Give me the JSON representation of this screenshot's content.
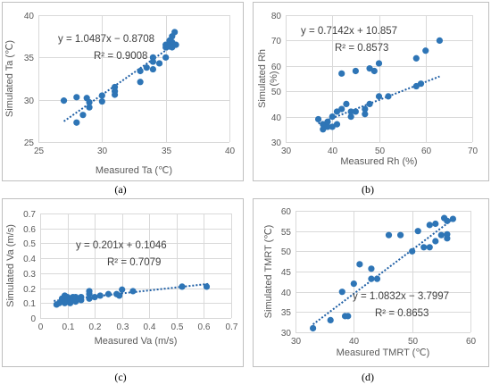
{
  "figure": {
    "marker_color": "#2e75b6",
    "trend_color": "#1f5fa5"
  },
  "chart_data": [
    {
      "type": "scatter",
      "panel_label": "(a)",
      "xlabel": "Measured Ta (℃)",
      "ylabel": "Simulated Ta (℃)",
      "xlim": [
        25,
        40
      ],
      "ylim": [
        25,
        40
      ],
      "xticks": [
        25,
        30,
        35,
        40
      ],
      "yticks": [
        25,
        30,
        35,
        40
      ],
      "equation": "y = 1.0487x − 0.8708",
      "r_squared": "R² = 0.9008",
      "trendline": {
        "slope": 1.0487,
        "intercept": -0.8708,
        "x_range": [
          27,
          35.7
        ],
        "style": "dotted linear"
      },
      "points": [
        [
          27.0,
          29.9
        ],
        [
          28.0,
          30.3
        ],
        [
          28.0,
          27.3
        ],
        [
          28.5,
          28.2
        ],
        [
          28.8,
          30.2
        ],
        [
          29.0,
          29.7
        ],
        [
          29.0,
          29.1
        ],
        [
          30.0,
          30.5
        ],
        [
          30.0,
          29.8
        ],
        [
          31.0,
          31.5
        ],
        [
          31.0,
          31.0
        ],
        [
          31.0,
          30.6
        ],
        [
          33.0,
          32.1
        ],
        [
          33.0,
          33.4
        ],
        [
          33.5,
          33.8
        ],
        [
          34.0,
          33.6
        ],
        [
          34.0,
          34.5
        ],
        [
          34.0,
          35.0
        ],
        [
          34.5,
          34.3
        ],
        [
          35.0,
          35.0
        ],
        [
          35.0,
          36.2
        ],
        [
          35.0,
          36.5
        ],
        [
          35.3,
          37.0
        ],
        [
          35.5,
          36.8
        ],
        [
          35.5,
          37.5
        ],
        [
          35.5,
          36.2
        ],
        [
          35.7,
          38.0
        ],
        [
          35.8,
          36.5
        ],
        [
          35.3,
          36.3
        ]
      ]
    },
    {
      "type": "scatter",
      "panel_label": "(b)",
      "xlabel": "Measured Rh (%)",
      "ylabel": "Simulated Rh\n(%)",
      "ylabel_lines": [
        "Simulated Rh",
        "(%)"
      ],
      "xlim": [
        30,
        70
      ],
      "ylim": [
        30,
        80
      ],
      "xticks": [
        30,
        40,
        50,
        60,
        70
      ],
      "yticks": [
        30,
        40,
        50,
        60,
        70,
        80
      ],
      "equation": "y = 0.7142x + 10.857",
      "r_squared": "R² = 0.8573",
      "trendline": {
        "slope": 0.7142,
        "intercept": 10.857,
        "x_range": [
          37,
          63
        ],
        "style": "dotted linear"
      },
      "points": [
        [
          37,
          39
        ],
        [
          38,
          37
        ],
        [
          38,
          35
        ],
        [
          39,
          36
        ],
        [
          39,
          38
        ],
        [
          40,
          40
        ],
        [
          40,
          36
        ],
        [
          41,
          42
        ],
        [
          41,
          37
        ],
        [
          42,
          43
        ],
        [
          42,
          57
        ],
        [
          43,
          45
        ],
        [
          44,
          40
        ],
        [
          44,
          42
        ],
        [
          45,
          42
        ],
        [
          45,
          58
        ],
        [
          47,
          41
        ],
        [
          47,
          43
        ],
        [
          48,
          45
        ],
        [
          48,
          59
        ],
        [
          49,
          58
        ],
        [
          50,
          61
        ],
        [
          50,
          48
        ],
        [
          52,
          48
        ],
        [
          58,
          52
        ],
        [
          58,
          63
        ],
        [
          59,
          53
        ],
        [
          60,
          66
        ],
        [
          63,
          70
        ]
      ]
    },
    {
      "type": "scatter",
      "panel_label": "(c)",
      "xlabel": "Measured Va (m/s)",
      "ylabel": "Simulated Va (m/s)",
      "xlim": [
        0,
        0.7
      ],
      "ylim": [
        0,
        0.7
      ],
      "xticks": [
        0,
        0.1,
        0.2,
        0.3,
        0.4,
        0.5,
        0.6,
        0.7
      ],
      "yticks": [
        0,
        0.1,
        0.2,
        0.3,
        0.4,
        0.5,
        0.6,
        0.7
      ],
      "equation": "y = 0.201x + 0.1046",
      "r_squared": "R² = 0.7079",
      "trendline": {
        "slope": 0.201,
        "intercept": 0.1046,
        "x_range": [
          0.05,
          0.62
        ],
        "style": "dotted linear"
      },
      "points": [
        [
          0.06,
          0.09
        ],
        [
          0.07,
          0.1
        ],
        [
          0.08,
          0.12
        ],
        [
          0.08,
          0.13
        ],
        [
          0.09,
          0.15
        ],
        [
          0.09,
          0.1
        ],
        [
          0.1,
          0.14
        ],
        [
          0.1,
          0.11
        ],
        [
          0.1,
          0.12
        ],
        [
          0.11,
          0.13
        ],
        [
          0.11,
          0.1
        ],
        [
          0.12,
          0.14
        ],
        [
          0.12,
          0.12
        ],
        [
          0.13,
          0.14
        ],
        [
          0.13,
          0.11
        ],
        [
          0.14,
          0.13
        ],
        [
          0.15,
          0.14
        ],
        [
          0.15,
          0.12
        ],
        [
          0.18,
          0.13
        ],
        [
          0.18,
          0.16
        ],
        [
          0.18,
          0.18
        ],
        [
          0.2,
          0.14
        ],
        [
          0.22,
          0.15
        ],
        [
          0.25,
          0.16
        ],
        [
          0.28,
          0.16
        ],
        [
          0.29,
          0.15
        ],
        [
          0.3,
          0.19
        ],
        [
          0.34,
          0.18
        ],
        [
          0.52,
          0.21
        ],
        [
          0.61,
          0.21
        ]
      ]
    },
    {
      "type": "scatter",
      "panel_label": "(d)",
      "xlabel": "Measured TMRT (℃)",
      "ylabel": "Simulated TMRT (℃)",
      "xlim": [
        30,
        60
      ],
      "ylim": [
        30,
        60
      ],
      "xticks": [
        30,
        40,
        50,
        60
      ],
      "yticks": [
        30,
        35,
        40,
        45,
        50,
        55,
        60
      ],
      "equation": "y = 1.0832x − 3.7997",
      "r_squared": "R² = 0.8653",
      "trendline": {
        "slope": 1.0832,
        "intercept": -3.7997,
        "x_range": [
          33,
          57
        ],
        "style": "dotted linear"
      },
      "points": [
        [
          33,
          31
        ],
        [
          36,
          33
        ],
        [
          38,
          40
        ],
        [
          38.5,
          34
        ],
        [
          39,
          34
        ],
        [
          40,
          42
        ],
        [
          41,
          46.8
        ],
        [
          43,
          45.7
        ],
        [
          43,
          43.2
        ],
        [
          44,
          43.2
        ],
        [
          46,
          54
        ],
        [
          48,
          54
        ],
        [
          50,
          50
        ],
        [
          51,
          55
        ],
        [
          52,
          51
        ],
        [
          53,
          51
        ],
        [
          53,
          56.5
        ],
        [
          54,
          52.5
        ],
        [
          54,
          56.8
        ],
        [
          55,
          54
        ],
        [
          55.5,
          58.2
        ],
        [
          56,
          57.5
        ],
        [
          56,
          54.2
        ],
        [
          56,
          53.2
        ],
        [
          57,
          58
        ]
      ]
    }
  ]
}
